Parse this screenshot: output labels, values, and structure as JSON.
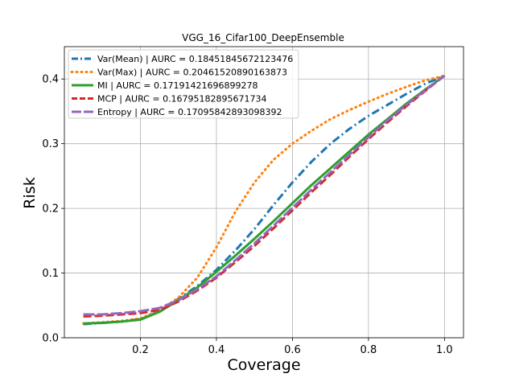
{
  "chart_data": {
    "type": "line",
    "title": "VGG_16_Cifar100_DeepEnsemble",
    "xlabel": "Coverage",
    "ylabel": "Risk",
    "xlim": [
      0.0,
      1.05
    ],
    "ylim": [
      0.0,
      0.45
    ],
    "xticks": [
      "0.2",
      "0.4",
      "0.6",
      "0.8",
      "1.0"
    ],
    "yticks": [
      "0.0",
      "0.1",
      "0.2",
      "0.3",
      "0.4"
    ],
    "grid": true,
    "legend_position": "top-left",
    "series": [
      {
        "name": "Var(Mean) | AURC = 0.18451845672123476",
        "color": "#1f77b4",
        "style": "dashdot",
        "x": [
          0.05,
          0.1,
          0.15,
          0.2,
          0.25,
          0.3,
          0.35,
          0.4,
          0.45,
          0.5,
          0.55,
          0.6,
          0.65,
          0.7,
          0.75,
          0.8,
          0.85,
          0.9,
          0.95,
          1.0
        ],
        "y": [
          0.021,
          0.023,
          0.025,
          0.029,
          0.04,
          0.06,
          0.08,
          0.105,
          0.135,
          0.168,
          0.205,
          0.24,
          0.272,
          0.3,
          0.323,
          0.343,
          0.36,
          0.377,
          0.393,
          0.405
        ]
      },
      {
        "name": "Var(Max) | AURC = 0.20461520890163873",
        "color": "#ff7f0e",
        "style": "dotted",
        "x": [
          0.05,
          0.1,
          0.15,
          0.2,
          0.25,
          0.3,
          0.35,
          0.4,
          0.45,
          0.5,
          0.55,
          0.6,
          0.65,
          0.7,
          0.75,
          0.8,
          0.85,
          0.9,
          0.95,
          1.0
        ],
        "y": [
          0.022,
          0.024,
          0.026,
          0.03,
          0.042,
          0.062,
          0.093,
          0.14,
          0.195,
          0.24,
          0.275,
          0.3,
          0.32,
          0.338,
          0.352,
          0.365,
          0.377,
          0.388,
          0.398,
          0.405
        ]
      },
      {
        "name": "MI | AURC = 0.17191421696899278",
        "color": "#2ca02c",
        "style": "solid",
        "x": [
          0.05,
          0.1,
          0.15,
          0.2,
          0.25,
          0.3,
          0.35,
          0.4,
          0.45,
          0.5,
          0.55,
          0.6,
          0.65,
          0.7,
          0.75,
          0.8,
          0.85,
          0.9,
          0.95,
          1.0
        ],
        "y": [
          0.022,
          0.023,
          0.025,
          0.028,
          0.04,
          0.058,
          0.078,
          0.102,
          0.127,
          0.153,
          0.18,
          0.208,
          0.236,
          0.262,
          0.288,
          0.314,
          0.338,
          0.362,
          0.384,
          0.405
        ]
      },
      {
        "name": "MCP | AURC = 0.16795182895671734",
        "color": "#d62728",
        "style": "dashed",
        "x": [
          0.05,
          0.1,
          0.15,
          0.2,
          0.25,
          0.3,
          0.35,
          0.4,
          0.45,
          0.5,
          0.55,
          0.6,
          0.65,
          0.7,
          0.75,
          0.8,
          0.85,
          0.9,
          0.95,
          1.0
        ],
        "y": [
          0.033,
          0.034,
          0.036,
          0.038,
          0.043,
          0.056,
          0.073,
          0.093,
          0.117,
          0.142,
          0.169,
          0.197,
          0.225,
          0.252,
          0.28,
          0.307,
          0.333,
          0.358,
          0.382,
          0.405
        ]
      },
      {
        "name": "Entropy | AURC = 0.17095842893098392",
        "color": "#9467bd",
        "style": "longdash",
        "x": [
          0.05,
          0.1,
          0.15,
          0.2,
          0.25,
          0.3,
          0.35,
          0.4,
          0.45,
          0.5,
          0.55,
          0.6,
          0.65,
          0.7,
          0.75,
          0.8,
          0.85,
          0.9,
          0.95,
          1.0
        ],
        "y": [
          0.036,
          0.036,
          0.038,
          0.041,
          0.046,
          0.058,
          0.075,
          0.095,
          0.12,
          0.146,
          0.173,
          0.201,
          0.229,
          0.256,
          0.283,
          0.31,
          0.336,
          0.36,
          0.383,
          0.405
        ]
      }
    ]
  }
}
